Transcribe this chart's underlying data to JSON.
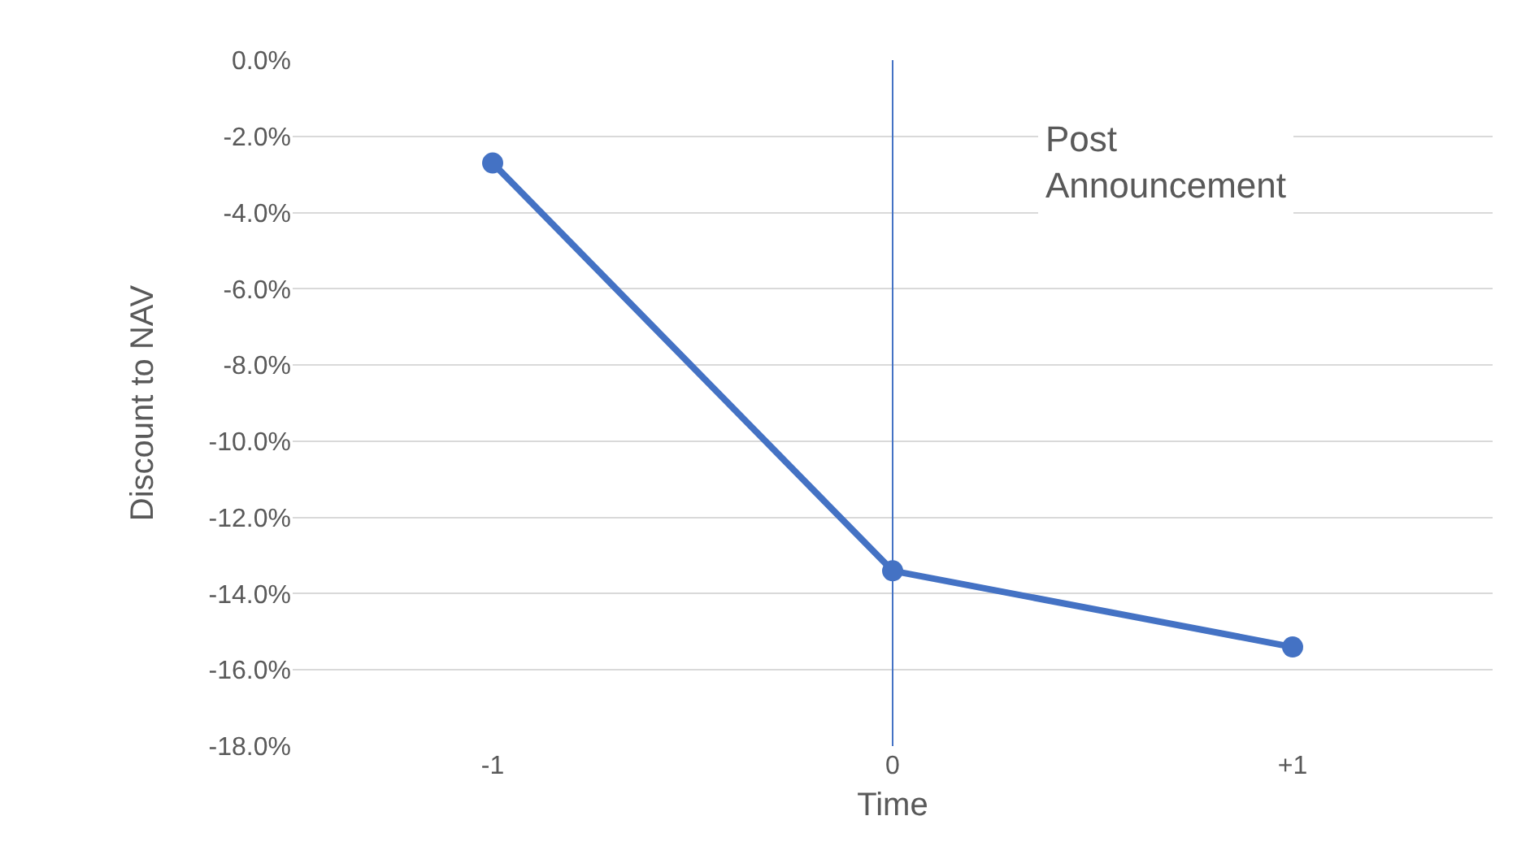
{
  "chart_data": {
    "type": "line",
    "xlabel": "Time",
    "ylabel": "Discount to NAV",
    "categories": [
      "-1",
      "0",
      "+1"
    ],
    "series": [
      {
        "color": "#4472c4",
        "values": [
          -2.7,
          -13.4,
          -15.4
        ]
      }
    ],
    "ylim": [
      -18,
      0
    ],
    "yticks": [
      {
        "value": -18,
        "label": "-18.0%"
      },
      {
        "value": -16,
        "label": "-16.0%"
      },
      {
        "value": -14,
        "label": "-14.0%"
      },
      {
        "value": -12,
        "label": "-12.0%"
      },
      {
        "value": -10,
        "label": "-10.0%"
      },
      {
        "value": -8,
        "label": "-8.0%"
      },
      {
        "value": -6,
        "label": "-6.0%"
      },
      {
        "value": -4,
        "label": "-4.0%"
      },
      {
        "value": -2,
        "label": "-2.0%"
      },
      {
        "value": 0,
        "label": "0.0%"
      }
    ],
    "ref_lines": [
      {
        "axis": "x",
        "value": "0",
        "color": "#4472c4"
      }
    ],
    "annotations": [
      "Post\nAnnouncement"
    ],
    "grid": "y",
    "legend": false,
    "marker": "circle",
    "line_style": "solid"
  }
}
